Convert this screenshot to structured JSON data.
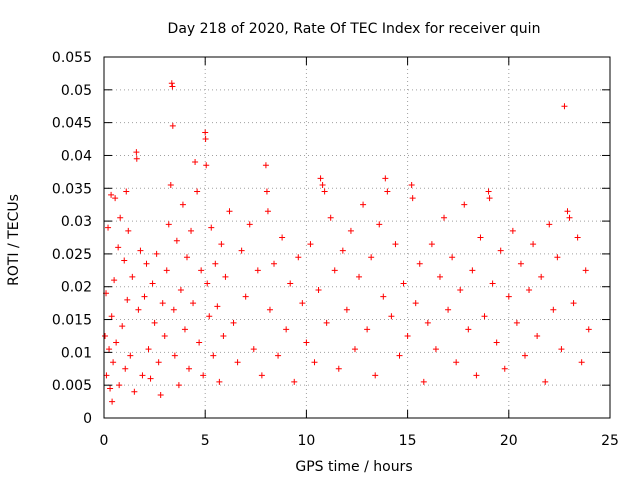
{
  "chart_data": {
    "type": "scatter",
    "title": "Day 218 of 2020, Rate Of TEC Index for receiver quin",
    "xlabel": "GPS time / hours",
    "ylabel": "ROTI / TECUs",
    "xlim": [
      0,
      25
    ],
    "ylim": [
      0,
      0.055
    ],
    "xticks": [
      0,
      5,
      10,
      15,
      20,
      25
    ],
    "xtick_labels": [
      "0",
      "5",
      "10",
      "15",
      "20",
      "25"
    ],
    "yticks": [
      0,
      0.005,
      0.01,
      0.015,
      0.02,
      0.025,
      0.03,
      0.035,
      0.04,
      0.045,
      0.05,
      0.055
    ],
    "ytick_labels": [
      "0",
      "0.005",
      "0.01",
      "0.015",
      "0.02",
      "0.025",
      "0.03",
      "0.035",
      "0.04",
      "0.045",
      "0.05",
      "0.055"
    ],
    "grid": true,
    "marker": "plus",
    "color": "#ff0000",
    "series": [
      {
        "name": "ROTI",
        "points": [
          [
            0.05,
            0.0125
          ],
          [
            0.1,
            0.019
          ],
          [
            0.12,
            0.0065
          ],
          [
            0.2,
            0.029
          ],
          [
            0.25,
            0.0105
          ],
          [
            0.3,
            0.0045
          ],
          [
            0.35,
            0.034
          ],
          [
            0.38,
            0.0155
          ],
          [
            0.4,
            0.0025
          ],
          [
            0.45,
            0.0085
          ],
          [
            0.5,
            0.021
          ],
          [
            0.55,
            0.0335
          ],
          [
            0.6,
            0.0115
          ],
          [
            0.7,
            0.026
          ],
          [
            0.75,
            0.005
          ],
          [
            0.8,
            0.0305
          ],
          [
            0.9,
            0.014
          ],
          [
            1.0,
            0.024
          ],
          [
            1.05,
            0.0075
          ],
          [
            1.1,
            0.0345
          ],
          [
            1.15,
            0.018
          ],
          [
            1.2,
            0.0285
          ],
          [
            1.3,
            0.0095
          ],
          [
            1.4,
            0.0215
          ],
          [
            1.5,
            0.004
          ],
          [
            1.6,
            0.0405
          ],
          [
            1.62,
            0.0395
          ],
          [
            1.7,
            0.0165
          ],
          [
            1.8,
            0.0255
          ],
          [
            1.9,
            0.0065
          ],
          [
            2.0,
            0.0185
          ],
          [
            2.1,
            0.0235
          ],
          [
            2.2,
            0.0105
          ],
          [
            2.3,
            0.006
          ],
          [
            2.4,
            0.0205
          ],
          [
            2.5,
            0.0145
          ],
          [
            2.6,
            0.025
          ],
          [
            2.7,
            0.0085
          ],
          [
            2.8,
            0.0035
          ],
          [
            2.9,
            0.0175
          ],
          [
            3.0,
            0.0125
          ],
          [
            3.1,
            0.0225
          ],
          [
            3.2,
            0.0295
          ],
          [
            3.3,
            0.0355
          ],
          [
            3.35,
            0.051
          ],
          [
            3.38,
            0.0505
          ],
          [
            3.4,
            0.0445
          ],
          [
            3.45,
            0.0165
          ],
          [
            3.5,
            0.0095
          ],
          [
            3.6,
            0.027
          ],
          [
            3.7,
            0.005
          ],
          [
            3.8,
            0.0195
          ],
          [
            3.9,
            0.0325
          ],
          [
            4.0,
            0.0135
          ],
          [
            4.1,
            0.0245
          ],
          [
            4.2,
            0.0075
          ],
          [
            4.3,
            0.0285
          ],
          [
            4.4,
            0.0175
          ],
          [
            4.5,
            0.039
          ],
          [
            4.6,
            0.0345
          ],
          [
            4.7,
            0.0115
          ],
          [
            4.8,
            0.0225
          ],
          [
            4.9,
            0.0065
          ],
          [
            5.0,
            0.0435
          ],
          [
            5.02,
            0.0425
          ],
          [
            5.05,
            0.0385
          ],
          [
            5.1,
            0.0205
          ],
          [
            5.2,
            0.0155
          ],
          [
            5.3,
            0.029
          ],
          [
            5.4,
            0.0095
          ],
          [
            5.5,
            0.0235
          ],
          [
            5.6,
            0.017
          ],
          [
            5.7,
            0.0055
          ],
          [
            5.8,
            0.0265
          ],
          [
            5.9,
            0.0125
          ],
          [
            6.0,
            0.0215
          ],
          [
            6.2,
            0.0315
          ],
          [
            6.4,
            0.0145
          ],
          [
            6.6,
            0.0085
          ],
          [
            6.8,
            0.0255
          ],
          [
            7.0,
            0.0185
          ],
          [
            7.2,
            0.0295
          ],
          [
            7.4,
            0.0105
          ],
          [
            7.6,
            0.0225
          ],
          [
            7.8,
            0.0065
          ],
          [
            8.0,
            0.0385
          ],
          [
            8.05,
            0.0345
          ],
          [
            8.1,
            0.0315
          ],
          [
            8.2,
            0.0165
          ],
          [
            8.4,
            0.0235
          ],
          [
            8.6,
            0.0095
          ],
          [
            8.8,
            0.0275
          ],
          [
            9.0,
            0.0135
          ],
          [
            9.2,
            0.0205
          ],
          [
            9.4,
            0.0055
          ],
          [
            9.6,
            0.0245
          ],
          [
            9.8,
            0.0175
          ],
          [
            10.0,
            0.0115
          ],
          [
            10.2,
            0.0265
          ],
          [
            10.4,
            0.0085
          ],
          [
            10.6,
            0.0195
          ],
          [
            10.7,
            0.0365
          ],
          [
            10.8,
            0.0355
          ],
          [
            10.9,
            0.0345
          ],
          [
            11.0,
            0.0145
          ],
          [
            11.2,
            0.0305
          ],
          [
            11.4,
            0.0225
          ],
          [
            11.6,
            0.0075
          ],
          [
            11.8,
            0.0255
          ],
          [
            12.0,
            0.0165
          ],
          [
            12.2,
            0.0285
          ],
          [
            12.4,
            0.0105
          ],
          [
            12.6,
            0.0215
          ],
          [
            12.8,
            0.0325
          ],
          [
            13.0,
            0.0135
          ],
          [
            13.2,
            0.0245
          ],
          [
            13.4,
            0.0065
          ],
          [
            13.6,
            0.0295
          ],
          [
            13.8,
            0.0185
          ],
          [
            13.9,
            0.0365
          ],
          [
            14.0,
            0.0345
          ],
          [
            14.2,
            0.0155
          ],
          [
            14.4,
            0.0265
          ],
          [
            14.6,
            0.0095
          ],
          [
            14.8,
            0.0205
          ],
          [
            15.0,
            0.0125
          ],
          [
            15.2,
            0.0355
          ],
          [
            15.25,
            0.0335
          ],
          [
            15.4,
            0.0175
          ],
          [
            15.6,
            0.0235
          ],
          [
            15.8,
            0.0055
          ],
          [
            16.0,
            0.0145
          ],
          [
            16.2,
            0.0265
          ],
          [
            16.4,
            0.0105
          ],
          [
            16.6,
            0.0215
          ],
          [
            16.8,
            0.0305
          ],
          [
            17.0,
            0.0165
          ],
          [
            17.2,
            0.0245
          ],
          [
            17.4,
            0.0085
          ],
          [
            17.6,
            0.0195
          ],
          [
            17.8,
            0.0325
          ],
          [
            18.0,
            0.0135
          ],
          [
            18.2,
            0.0225
          ],
          [
            18.4,
            0.0065
          ],
          [
            18.6,
            0.0275
          ],
          [
            18.8,
            0.0155
          ],
          [
            19.0,
            0.0345
          ],
          [
            19.05,
            0.0335
          ],
          [
            19.2,
            0.0205
          ],
          [
            19.4,
            0.0115
          ],
          [
            19.6,
            0.0255
          ],
          [
            19.8,
            0.0075
          ],
          [
            20.0,
            0.0185
          ],
          [
            20.2,
            0.0285
          ],
          [
            20.4,
            0.0145
          ],
          [
            20.6,
            0.0235
          ],
          [
            20.8,
            0.0095
          ],
          [
            21.0,
            0.0195
          ],
          [
            21.2,
            0.0265
          ],
          [
            21.4,
            0.0125
          ],
          [
            21.6,
            0.0215
          ],
          [
            21.8,
            0.0055
          ],
          [
            22.0,
            0.0295
          ],
          [
            22.2,
            0.0165
          ],
          [
            22.4,
            0.0245
          ],
          [
            22.6,
            0.0105
          ],
          [
            22.75,
            0.0475
          ],
          [
            22.9,
            0.0315
          ],
          [
            23.0,
            0.0305
          ],
          [
            23.2,
            0.0175
          ],
          [
            23.4,
            0.0275
          ],
          [
            23.6,
            0.0085
          ],
          [
            23.8,
            0.0225
          ],
          [
            23.95,
            0.0135
          ]
        ]
      }
    ]
  }
}
